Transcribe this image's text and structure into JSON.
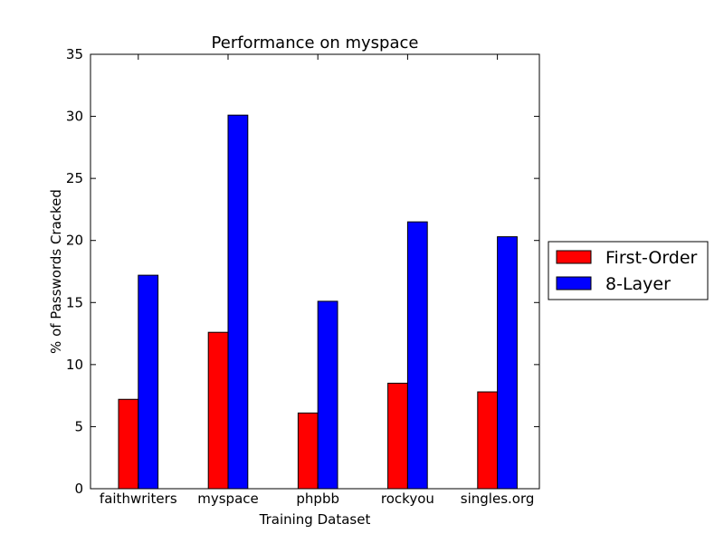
{
  "chart_data": {
    "type": "bar",
    "title": "Performance on myspace",
    "xlabel": "Training Dataset",
    "ylabel": "% of Passwords Cracked",
    "categories": [
      "faithwriters",
      "myspace",
      "phpbb",
      "rockyou",
      "singles.org"
    ],
    "series": [
      {
        "name": "First-Order",
        "color": "#ff0000",
        "values": [
          7.2,
          12.6,
          6.1,
          8.5,
          7.8
        ]
      },
      {
        "name": "8-Layer",
        "color": "#0000ff",
        "values": [
          17.2,
          30.1,
          15.1,
          21.5,
          20.3
        ]
      }
    ],
    "ylim": [
      0,
      35
    ],
    "yticks": [
      "0",
      "5",
      "10",
      "15",
      "20",
      "25",
      "30",
      "35"
    ],
    "grid": false,
    "legend_position": "outside-right"
  }
}
